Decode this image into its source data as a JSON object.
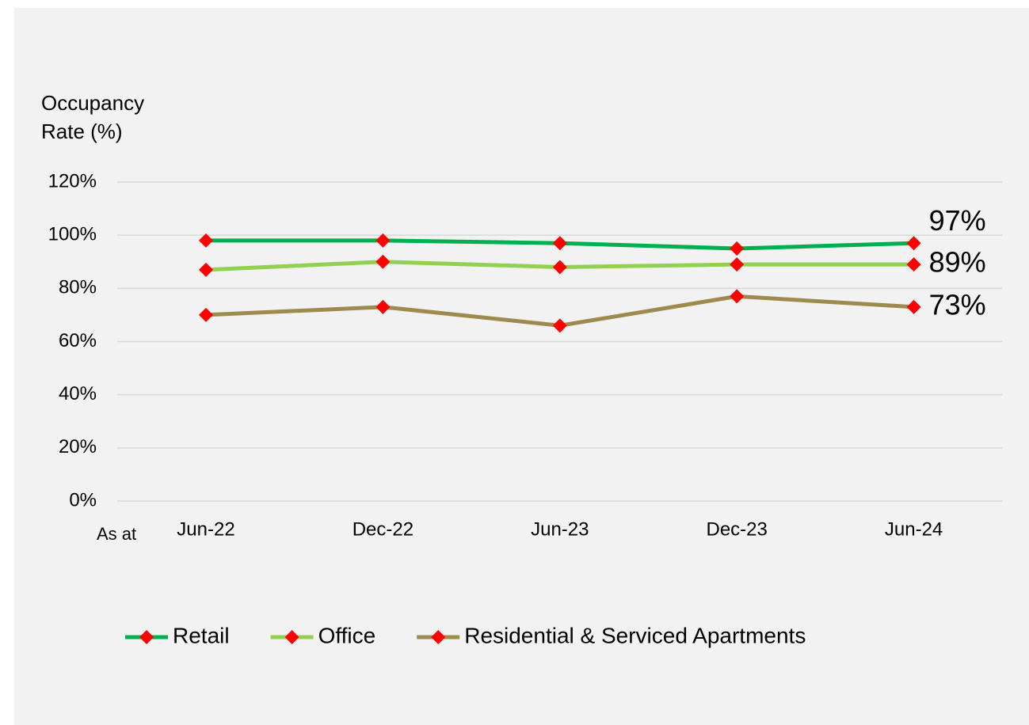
{
  "chart_data": {
    "type": "line",
    "y_label": "Occupancy Rate (%)",
    "x_label": "As at",
    "categories": [
      "Jun-22",
      "Dec-22",
      "Jun-23",
      "Dec-23",
      "Jun-24"
    ],
    "series": [
      {
        "name": "Retail",
        "color": "#00b050",
        "marker_color": "#ff0000",
        "values": [
          98,
          98,
          97,
          95,
          97
        ],
        "value_labels": [
          null,
          null,
          null,
          null,
          "97%"
        ]
      },
      {
        "name": "Office",
        "color": "#92d050",
        "marker_color": "#ff0000",
        "values": [
          87,
          90,
          88,
          89,
          89
        ],
        "value_labels": [
          null,
          null,
          null,
          null,
          "89%"
        ]
      },
      {
        "name": "Residential & Serviced Apartments",
        "color": "#9e8a4e",
        "marker_color": "#ff0000",
        "values": [
          70,
          73,
          66,
          77,
          73
        ],
        "value_labels": [
          null,
          null,
          null,
          null,
          "73%"
        ]
      }
    ],
    "ylim": [
      0,
      120
    ],
    "yticks": [
      {
        "value": 0,
        "label": "0%"
      },
      {
        "value": 20,
        "label": "20%"
      },
      {
        "value": 40,
        "label": "40%"
      },
      {
        "value": 60,
        "label": "60%"
      },
      {
        "value": 80,
        "label": "80%"
      },
      {
        "value": 100,
        "label": "100%"
      },
      {
        "value": 120,
        "label": "120%"
      }
    ],
    "grid": true,
    "legend": "bottom"
  }
}
